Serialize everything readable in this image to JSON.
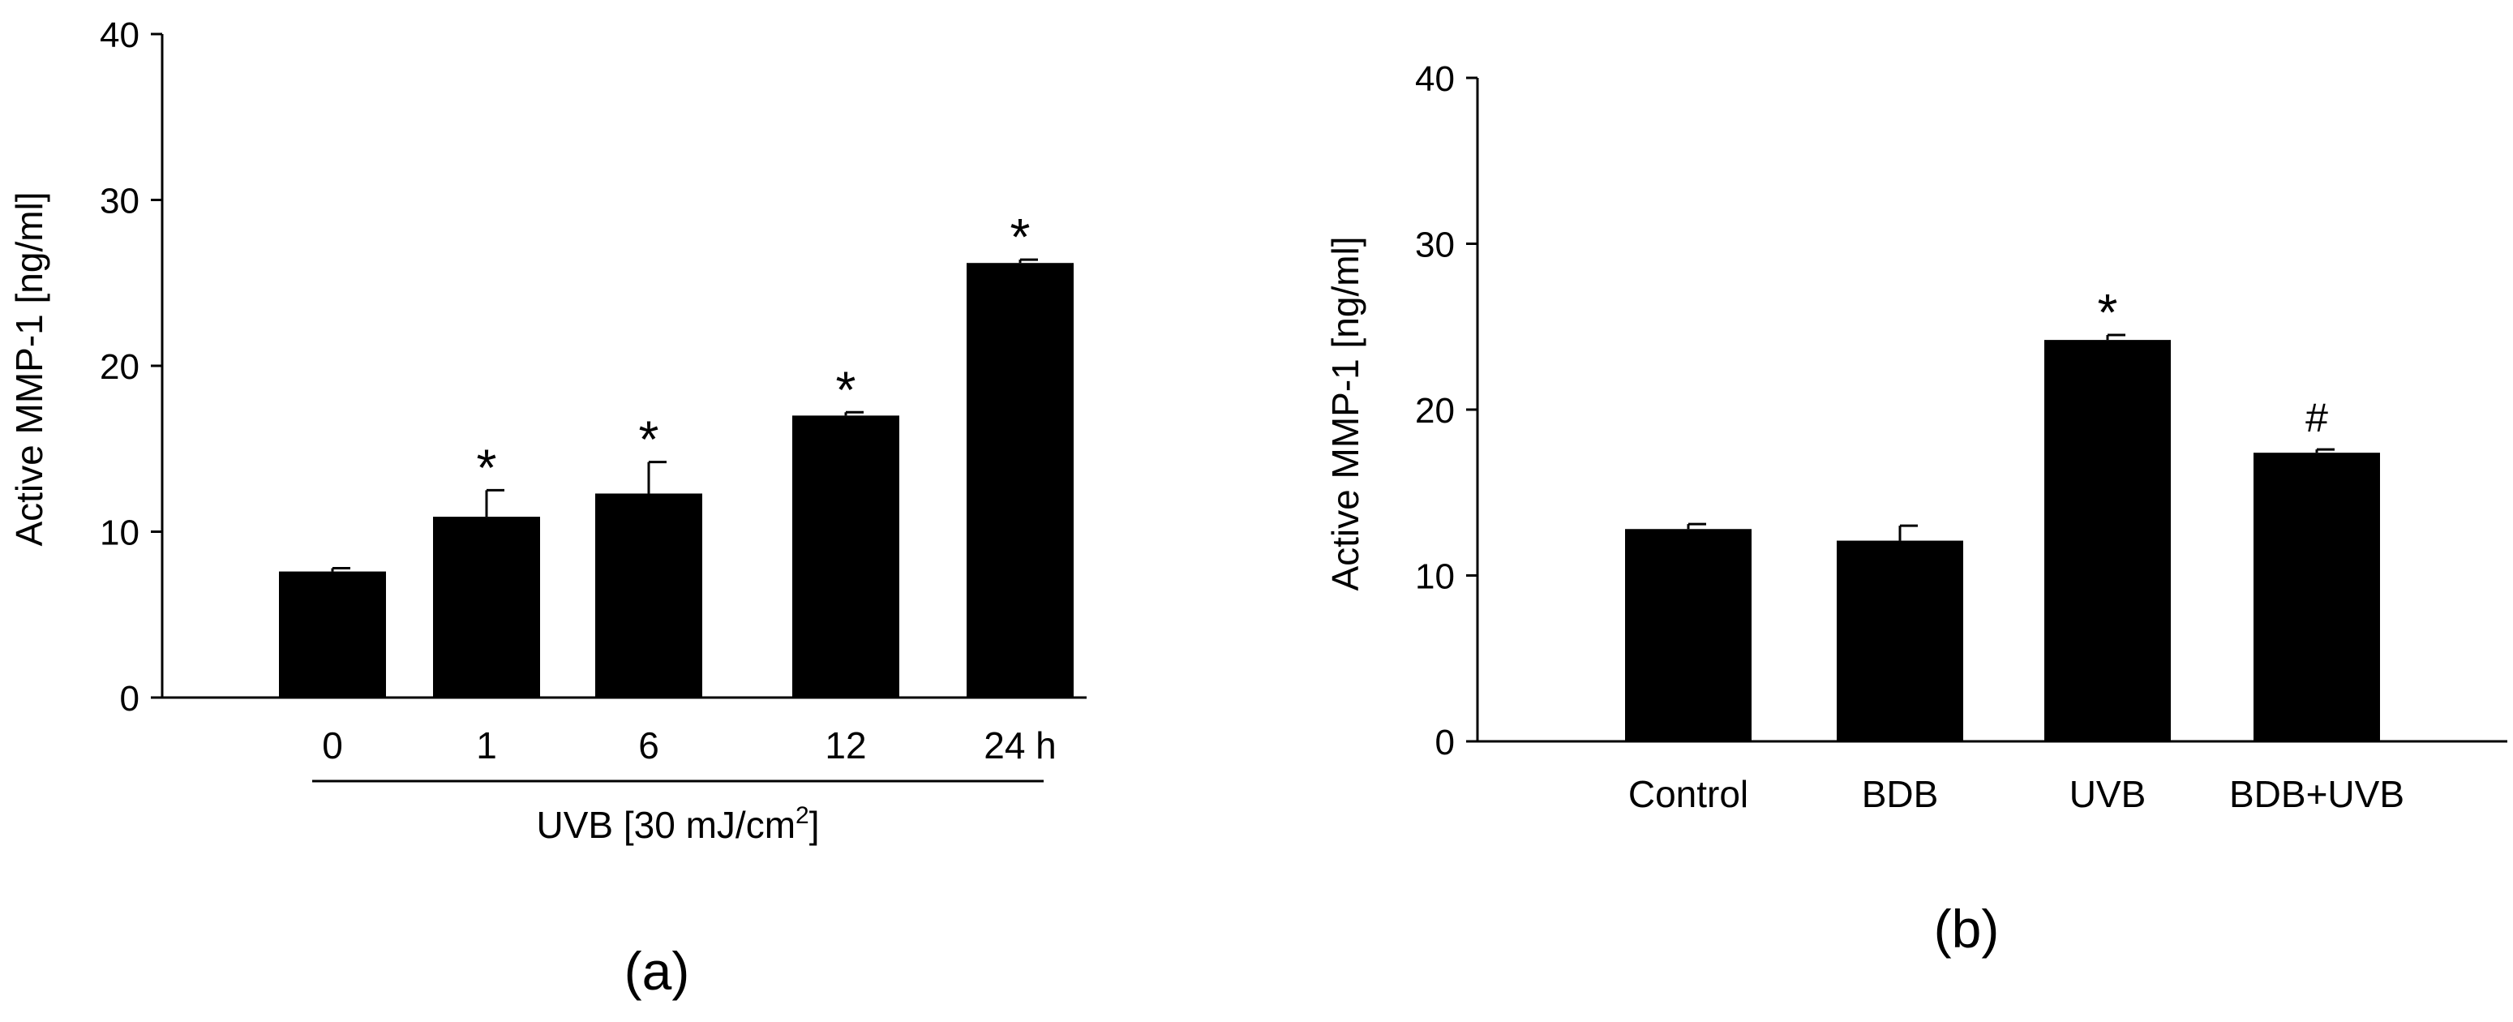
{
  "chart_data": [
    {
      "type": "bar",
      "panel_label": "(a)",
      "title": "",
      "ylabel": "Active MMP-1 [ng/ml]",
      "xlabel": "",
      "group_label_pre": "UVB [30 mJ/cm",
      "group_label_sup": "2",
      "group_label_post": "]",
      "ylim": [
        0,
        40
      ],
      "yticks": [
        "0",
        "10",
        "20",
        "30",
        "40"
      ],
      "categories": [
        "0",
        "1",
        "6",
        "12",
        "24 h"
      ],
      "values": [
        7.6,
        10.9,
        12.3,
        17.0,
        26.2
      ],
      "errors": [
        0.2,
        1.6,
        1.9,
        0.2,
        0.2
      ],
      "annotations": [
        "",
        "*",
        "*",
        "*",
        "*"
      ],
      "grid": false,
      "bar_color": "#000000"
    },
    {
      "type": "bar",
      "panel_label": "(b)",
      "title": "",
      "ylabel": "Active MMP-1 [ng/ml]",
      "xlabel": "",
      "ylim": [
        0,
        40
      ],
      "yticks": [
        "0",
        "10",
        "20",
        "30",
        "40"
      ],
      "categories": [
        "Control",
        "BDB",
        "UVB",
        "BDB+UVB"
      ],
      "values": [
        12.8,
        12.1,
        24.2,
        17.4
      ],
      "errors": [
        0.3,
        0.9,
        0.3,
        0.2
      ],
      "annotations": [
        "",
        "",
        "*",
        "#"
      ],
      "grid": false,
      "bar_color": "#000000"
    }
  ]
}
